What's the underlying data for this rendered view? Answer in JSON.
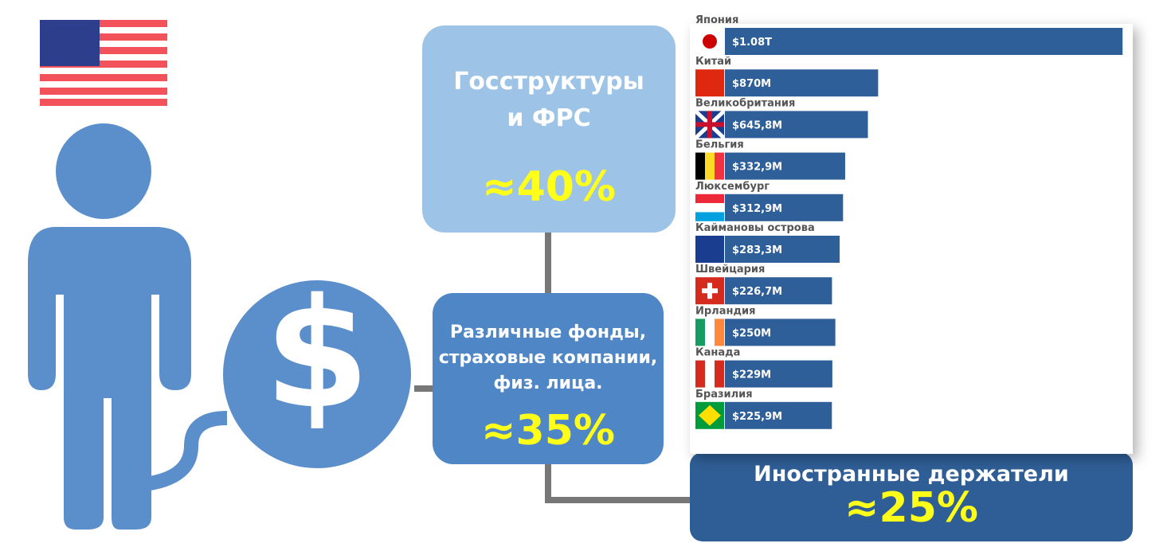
{
  "boxes": [
    {
      "lines": [
        "Госструктуры",
        "и ФРС"
      ],
      "share": "≈40%"
    },
    {
      "lines": [
        "Различные фонды,",
        "страховые компании,",
        "физ. лица."
      ],
      "share": "≈35%"
    },
    {
      "lines": [
        "Иностранные держатели"
      ],
      "share": "≈25%"
    }
  ],
  "chart_data": {
    "type": "bar",
    "orientation": "horizontal",
    "log_scale": true,
    "color": "#2e5f99",
    "categories": [
      "Япония",
      "Китай",
      "Великобритания",
      "Бельгия",
      "Люксембург",
      "Каймановы острова",
      "Швейцария",
      "Ирландия",
      "Канада",
      "Бразилия"
    ],
    "values": [
      1080000000000,
      870000000,
      645800000,
      332900000,
      312900000,
      283300000,
      226700000,
      250000000,
      229000000,
      225900000
    ],
    "value_labels": [
      "$1.08T",
      "$870M",
      "$645,8M",
      "$332,9M",
      "$312,9M",
      "$283,3M",
      "$226,7M",
      "$250M",
      "$229M",
      "$225,9M"
    ],
    "xlim": [
      10000000,
      1100000000000
    ]
  }
}
